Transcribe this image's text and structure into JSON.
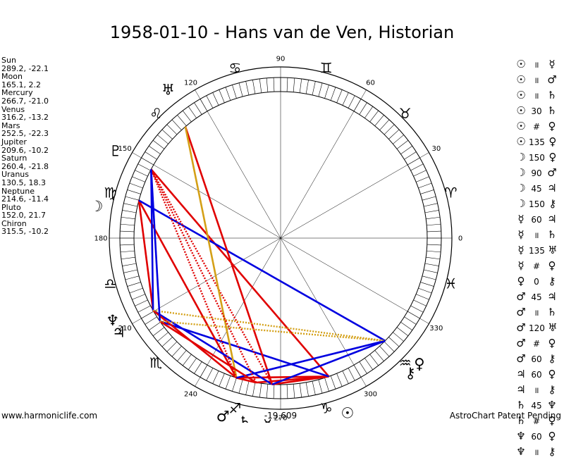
{
  "title": "1958-01-10 - Hans van de Ven, Historian",
  "footer_left": "www.harmoniclife.com",
  "footer_right": "AstroChart Patent Pending",
  "bottom_label": "-19,609",
  "positions": [
    {
      "name": "Sun",
      "coords": "289.2, -22.1"
    },
    {
      "name": "Moon",
      "coords": "165.1, 2.2"
    },
    {
      "name": "Mercury",
      "coords": "266.7, -21.0"
    },
    {
      "name": "Venus",
      "coords": "316.2, -13.2"
    },
    {
      "name": "Mars",
      "coords": "252.5, -22.3"
    },
    {
      "name": "Jupiter",
      "coords": "209.6, -10.2"
    },
    {
      "name": "Saturn",
      "coords": "260.4, -21.8"
    },
    {
      "name": "Uranus",
      "coords": "130.5, 18.3"
    },
    {
      "name": "Neptune",
      "coords": "214.6, -11.4"
    },
    {
      "name": "Pluto",
      "coords": "152.0, 21.7"
    },
    {
      "name": "Chiron",
      "coords": "315.5, -10.2"
    }
  ],
  "aspects": [
    {
      "p1": "☉",
      "sym": "॥",
      "p2": "☿"
    },
    {
      "p1": "☉",
      "sym": "॥",
      "p2": "♂"
    },
    {
      "p1": "☉",
      "sym": "॥",
      "p2": "♄"
    },
    {
      "p1": "☉",
      "sym": "30",
      "p2": "♄"
    },
    {
      "p1": "☉",
      "sym": "#",
      "p2": "♀"
    },
    {
      "p1": "☉",
      "sym": "135",
      "p2": "♀"
    },
    {
      "p1": "☽",
      "sym": "150",
      "p2": "♀"
    },
    {
      "p1": "☽",
      "sym": "90",
      "p2": "♂"
    },
    {
      "p1": "☽",
      "sym": "45",
      "p2": "♃"
    },
    {
      "p1": "☽",
      "sym": "150",
      "p2": "⚷"
    },
    {
      "p1": "☿",
      "sym": "60",
      "p2": "♃"
    },
    {
      "p1": "☿",
      "sym": "॥",
      "p2": "♄"
    },
    {
      "p1": "☿",
      "sym": "135",
      "p2": "♅"
    },
    {
      "p1": "☿",
      "sym": "#",
      "p2": "♀"
    },
    {
      "p1": "♀",
      "sym": "0",
      "p2": "⚷"
    },
    {
      "p1": "♂",
      "sym": "45",
      "p2": "♃"
    },
    {
      "p1": "♂",
      "sym": "॥",
      "p2": "♄"
    },
    {
      "p1": "♂",
      "sym": "120",
      "p2": "♅"
    },
    {
      "p1": "♂",
      "sym": "#",
      "p2": "♀"
    },
    {
      "p1": "♂",
      "sym": "60",
      "p2": "⚷"
    },
    {
      "p1": "♃",
      "sym": "60",
      "p2": "♀"
    },
    {
      "p1": "♃",
      "sym": "॥",
      "p2": "⚷"
    },
    {
      "p1": "♄",
      "sym": "45",
      "p2": "♆"
    },
    {
      "p1": "♄",
      "sym": "#",
      "p2": "♀"
    },
    {
      "p1": "♆",
      "sym": "60",
      "p2": "♀"
    },
    {
      "p1": "♆",
      "sym": "॥",
      "p2": "⚷"
    }
  ],
  "chart_data": {
    "type": "astrological-wheel",
    "degree_labels": [
      "0",
      "30",
      "60",
      "90",
      "120",
      "150",
      "180",
      "210",
      "240",
      "270",
      "300",
      "330"
    ],
    "degree_values": [
      0,
      30,
      60,
      90,
      120,
      150,
      180,
      210,
      240,
      270,
      300,
      330
    ],
    "signs": [
      {
        "glyph": "♈",
        "lon": 15
      },
      {
        "glyph": "♉",
        "lon": 45
      },
      {
        "glyph": "♊",
        "lon": 75
      },
      {
        "glyph": "♋",
        "lon": 105
      },
      {
        "glyph": "♌",
        "lon": 135
      },
      {
        "glyph": "♍",
        "lon": 165
      },
      {
        "glyph": "♎",
        "lon": 195
      },
      {
        "glyph": "♏",
        "lon": 225
      },
      {
        "glyph": "♐",
        "lon": 255
      },
      {
        "glyph": "♑",
        "lon": 285
      },
      {
        "glyph": "♒",
        "lon": 315
      },
      {
        "glyph": "♓",
        "lon": 345
      }
    ],
    "planets": [
      {
        "glyph": "☉",
        "lon": 289.2,
        "glyph_lon": 291
      },
      {
        "glyph": "☽",
        "lon": 165.1,
        "glyph_lon": 170
      },
      {
        "glyph": "☿",
        "lon": 266.7,
        "glyph_lon": 266
      },
      {
        "glyph": "♀",
        "lon": 316.2,
        "glyph_lon": 318
      },
      {
        "glyph": "♂",
        "lon": 252.5,
        "glyph_lon": 252
      },
      {
        "glyph": "♃",
        "lon": 209.6,
        "glyph_lon": 210
      },
      {
        "glyph": "♄",
        "lon": 260.4,
        "glyph_lon": 259
      },
      {
        "glyph": "♅",
        "lon": 130.5,
        "glyph_lon": 127
      },
      {
        "glyph": "♆",
        "lon": 214.6,
        "glyph_lon": 206
      },
      {
        "glyph": "♇",
        "lon": 152.0,
        "glyph_lon": 152
      },
      {
        "glyph": "⚷",
        "lon": 315.5,
        "glyph_lon": 314
      }
    ],
    "aspect_lines": [
      {
        "from": 289.2,
        "to": 266.7,
        "color": "#e00000",
        "style": "solid"
      },
      {
        "from": 289.2,
        "to": 252.5,
        "color": "#e00000",
        "style": "solid"
      },
      {
        "from": 289.2,
        "to": 260.4,
        "color": "#e00000",
        "style": "solid"
      },
      {
        "from": 289.2,
        "to": 152.0,
        "color": "#e00000",
        "style": "solid"
      },
      {
        "from": 289.2,
        "to": 214.6,
        "color": "#0000e0",
        "style": "solid"
      },
      {
        "from": 165.1,
        "to": 252.5,
        "color": "#e00000",
        "style": "solid"
      },
      {
        "from": 165.1,
        "to": 209.6,
        "color": "#e00000",
        "style": "solid"
      },
      {
        "from": 165.1,
        "to": 315.5,
        "color": "#0000e0",
        "style": "solid"
      },
      {
        "from": 266.7,
        "to": 209.6,
        "color": "#0000e0",
        "style": "solid"
      },
      {
        "from": 266.7,
        "to": 130.5,
        "color": "#e00000",
        "style": "solid"
      },
      {
        "from": 266.7,
        "to": 152.0,
        "color": "#e00000",
        "style": "dotted"
      },
      {
        "from": 252.5,
        "to": 209.6,
        "color": "#e00000",
        "style": "solid"
      },
      {
        "from": 252.5,
        "to": 260.4,
        "color": "#e00000",
        "style": "solid"
      },
      {
        "from": 252.5,
        "to": 130.5,
        "color": "#d4a017",
        "style": "solid"
      },
      {
        "from": 252.5,
        "to": 152.0,
        "color": "#e00000",
        "style": "dotted"
      },
      {
        "from": 252.5,
        "to": 315.5,
        "color": "#0000e0",
        "style": "solid"
      },
      {
        "from": 209.6,
        "to": 152.0,
        "color": "#0000e0",
        "style": "solid"
      },
      {
        "from": 209.6,
        "to": 315.5,
        "color": "#d4a017",
        "style": "dotted"
      },
      {
        "from": 260.4,
        "to": 214.6,
        "color": "#e00000",
        "style": "solid"
      },
      {
        "from": 260.4,
        "to": 152.0,
        "color": "#e00000",
        "style": "dotted"
      },
      {
        "from": 214.6,
        "to": 152.0,
        "color": "#0000e0",
        "style": "solid"
      },
      {
        "from": 214.6,
        "to": 315.5,
        "color": "#d4a017",
        "style": "dotted"
      },
      {
        "from": 315.5,
        "to": 266.7,
        "color": "#0000e0",
        "style": "solid"
      }
    ]
  }
}
